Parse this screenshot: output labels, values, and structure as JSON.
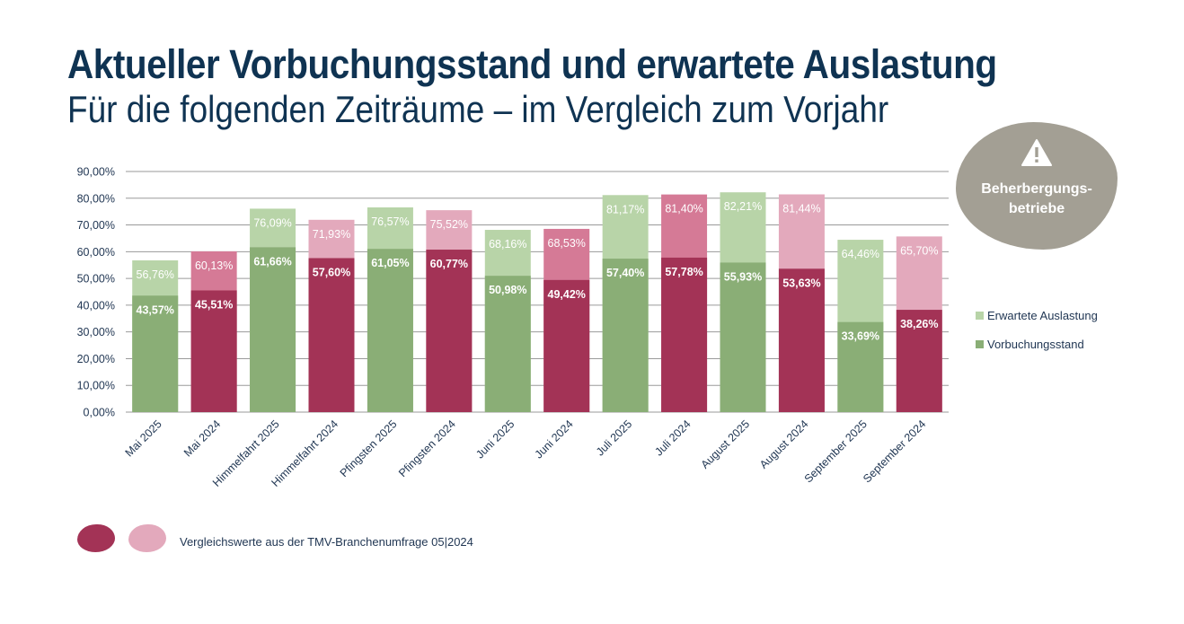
{
  "header": {
    "title": "Aktueller Vorbuchungsstand und erwartete Auslastung",
    "subtitle": "Für die folgenden Zeiträume – im Vergleich zum Vorjahr"
  },
  "badge": {
    "icon": "warning-icon",
    "line1": "Beherbergungs-",
    "line2": "betriebe"
  },
  "footer": {
    "note": "Vergleichswerte aus der TMV-Branchenumfrage 05|2024"
  },
  "colors": {
    "green_dark": "#8aae76",
    "green_light": "#b8d4a8",
    "red_dark": "#a33356",
    "red_light": "#e3a9bc",
    "red_mid_light": "#d57a96",
    "title": "#0f3352",
    "badge": "#a39f94"
  },
  "chart_data": {
    "type": "bar",
    "stacking": "overlay",
    "categories": [
      "Mai 2025",
      "Mai 2024",
      "Himmelfahrt 2025",
      "Himmelfahrt 2024",
      "Pfingsten 2025",
      "Pfingsten 2024",
      "Juni 2025",
      "Juni 2024",
      "Juli 2025",
      "Juli 2024",
      "August 2025",
      "August 2024",
      "September 2025",
      "September 2024"
    ],
    "series": [
      {
        "name": "Erwartete Auslastung",
        "values": [
          56.76,
          60.13,
          76.09,
          71.93,
          76.57,
          75.52,
          68.16,
          68.53,
          81.17,
          81.4,
          82.21,
          81.44,
          64.46,
          65.7
        ],
        "labels": [
          "56,76%",
          "60,13%",
          "76,09%",
          "71,93%",
          "76,57%",
          "75,52%",
          "68,16%",
          "68,53%",
          "81,17%",
          "81,40%",
          "82,21%",
          "81,44%",
          "64,46%",
          "65,70%"
        ]
      },
      {
        "name": "Vorbuchungsstand",
        "values": [
          43.57,
          45.51,
          61.66,
          57.6,
          61.05,
          60.77,
          50.98,
          49.42,
          57.4,
          57.78,
          55.93,
          53.63,
          33.69,
          38.26
        ],
        "labels": [
          "43,57%",
          "45,51%",
          "61,66%",
          "57,60%",
          "61,05%",
          "60,77%",
          "50,98%",
          "49,42%",
          "57,40%",
          "57,78%",
          "55,93%",
          "53,63%",
          "33,69%",
          "38,26%"
        ]
      }
    ],
    "ylim": [
      0,
      90
    ],
    "yticks": [
      "0,00%",
      "10,00%",
      "20,00%",
      "30,00%",
      "40,00%",
      "50,00%",
      "60,00%",
      "70,00%",
      "80,00%",
      "90,00%"
    ],
    "legend": [
      "Erwartete Auslastung",
      "Vorbuchungsstand"
    ],
    "legend_position": "right",
    "grid": true
  }
}
